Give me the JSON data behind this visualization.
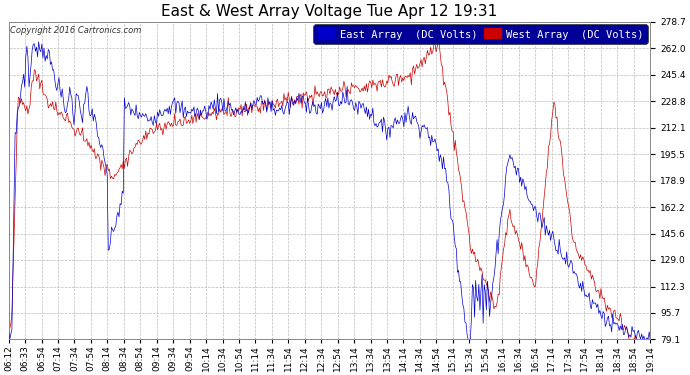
{
  "title": "East & West Array Voltage Tue Apr 12 19:31",
  "copyright": "Copyright 2016 Cartronics.com",
  "legend_east": "East Array  (DC Volts)",
  "legend_west": "West Array  (DC Volts)",
  "east_color": "#0000CC",
  "west_color": "#CC0000",
  "background_color": "#FFFFFF",
  "plot_bg_color": "#FFFFFF",
  "fig_bg_color": "#FFFFFF",
  "ylim_min": 79.1,
  "ylim_max": 278.7,
  "yticks": [
    79.1,
    95.7,
    112.3,
    129.0,
    145.6,
    162.2,
    178.9,
    195.5,
    212.1,
    228.8,
    245.4,
    262.0,
    278.7
  ],
  "xtick_labels": [
    "06:12",
    "06:33",
    "06:54",
    "07:14",
    "07:34",
    "07:54",
    "08:14",
    "08:34",
    "08:54",
    "09:14",
    "09:34",
    "09:54",
    "10:14",
    "10:34",
    "10:54",
    "11:14",
    "11:34",
    "11:54",
    "12:14",
    "12:34",
    "12:54",
    "13:14",
    "13:34",
    "13:54",
    "14:14",
    "14:34",
    "14:54",
    "15:14",
    "15:34",
    "15:54",
    "16:14",
    "16:34",
    "16:54",
    "17:14",
    "17:34",
    "17:54",
    "18:14",
    "18:34",
    "18:54",
    "19:14"
  ],
  "grid_color": "#BBBBBB",
  "grid_style": "--",
  "title_fontsize": 11,
  "tick_fontsize": 6.5,
  "legend_fontsize": 7.5,
  "legend_bg": "#000099"
}
